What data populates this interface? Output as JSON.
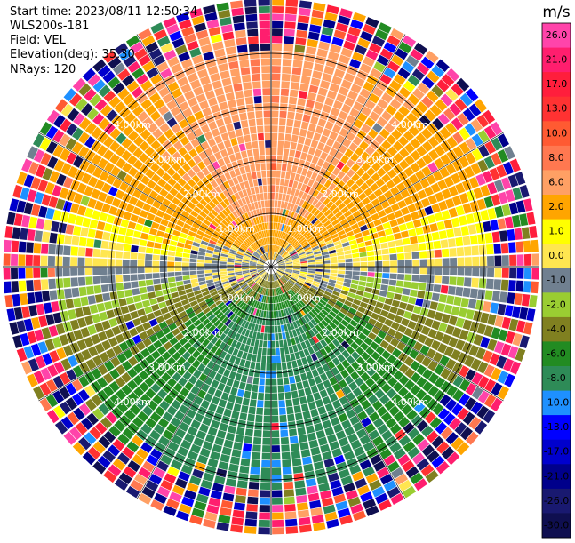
{
  "header": {
    "start_time": "Start time: 2023/08/11 12:50:34",
    "station": "WLS200s-181",
    "field": "Field: VEL",
    "elevation": "Elevation(deg): 35.30",
    "nrays": "NRays: 120"
  },
  "chart_data": {
    "type": "ppi",
    "field": "VEL",
    "nrays": 120,
    "elevation_deg": 35.3,
    "range_ring_km": [
      1.0,
      2.0,
      3.0,
      4.0
    ],
    "range_ring_labels": [
      "1.00km",
      "2.00km",
      "3.00km",
      "4.00km"
    ],
    "colorbar": {
      "unit": "m/s",
      "ticks": [
        "26.0",
        "21.0",
        "17.0",
        "13.0",
        "10.0",
        "8.0",
        "6.0",
        "2.0",
        "1.0",
        "0.0",
        "-1.0",
        "-2.0",
        "-4.0",
        "-6.0",
        "-8.0",
        "-10.0",
        "-13.0",
        "-17.0",
        "-21.0",
        "-26.0",
        "-30.0"
      ],
      "colors": [
        "#ff44aa",
        "#ff1e6e",
        "#ff1e3c",
        "#ff3232",
        "#ff5a32",
        "#ff7850",
        "#ffa064",
        "#ffa500",
        "#ffff00",
        "#ffe650",
        "#708090",
        "#9acd32",
        "#808020",
        "#228b22",
        "#2e8b57",
        "#1e90ff",
        "#0000ff",
        "#0000cd",
        "#00008b",
        "#191970",
        "#0f0f50"
      ]
    },
    "grid": true
  }
}
